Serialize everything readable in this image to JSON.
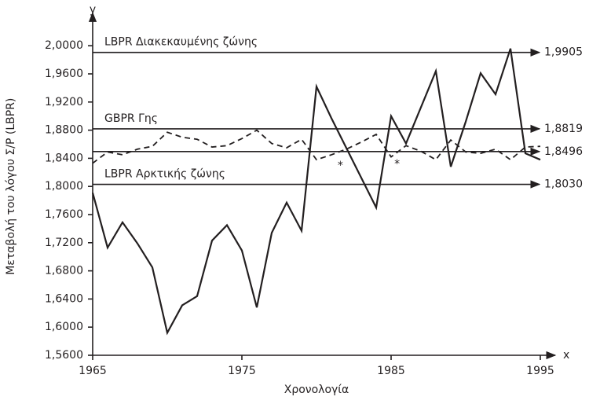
{
  "chart_data": {
    "type": "line",
    "x_axis_symbol": "y_dummy_removed"
  }
}
